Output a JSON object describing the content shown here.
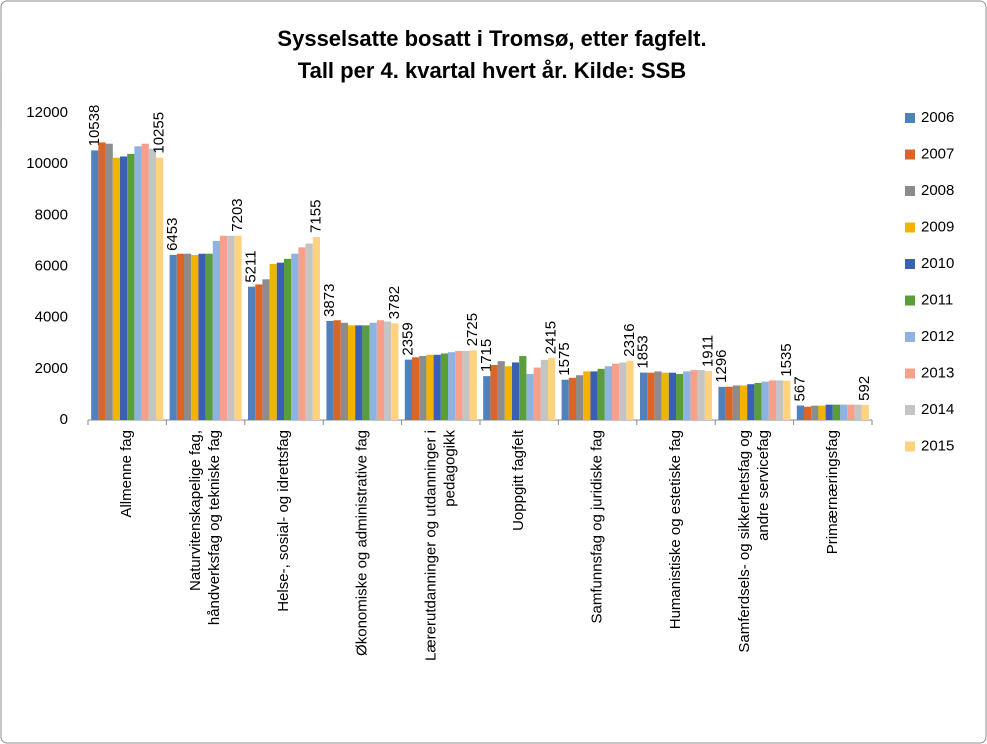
{
  "chart_data": {
    "type": "bar",
    "title": [
      "Sysselsatte bosatt i Tromsø, etter fagfelt.",
      "Tall per 4. kvartal hvert år. Kilde: SSB"
    ],
    "categories": [
      [
        "Allmenne fag"
      ],
      [
        "Naturvitenskapelige fag,",
        "håndverksfag og tekniske fag"
      ],
      [
        "Helse-, sosial- og idrettsfag"
      ],
      [
        "Økonomiske og administrative fag"
      ],
      [
        "Lærerutdanninger og utdanninger i",
        "pedagogikk"
      ],
      [
        "Uoppgitt fagfelt"
      ],
      [
        "Samfunnsfag og juridiske fag"
      ],
      [
        "Humanistiske og estetiske fag"
      ],
      [
        "Samferdsels- og sikkerhetsfag og",
        "andre servicefag"
      ],
      [
        "Primærnæringsfag"
      ]
    ],
    "series": [
      {
        "name": "2006",
        "color": "#4f81bd",
        "data_labels": true,
        "values": [
          10538,
          6453,
          5211,
          3873,
          2359,
          1715,
          1575,
          1853,
          1296,
          567
        ]
      },
      {
        "name": "2007",
        "color": "#d9652b",
        "data_labels": false,
        "values": [
          10850,
          6500,
          5300,
          3900,
          2450,
          2150,
          1650,
          1850,
          1300,
          520
        ]
      },
      {
        "name": "2008",
        "color": "#8c8c8c",
        "data_labels": false,
        "values": [
          10800,
          6500,
          5500,
          3800,
          2500,
          2300,
          1750,
          1900,
          1350,
          560
        ]
      },
      {
        "name": "2009",
        "color": "#f0b400",
        "data_labels": false,
        "values": [
          10250,
          6450,
          6100,
          3700,
          2550,
          2100,
          1900,
          1850,
          1350,
          560
        ]
      },
      {
        "name": "2010",
        "color": "#3a5fb5",
        "data_labels": false,
        "values": [
          10300,
          6500,
          6150,
          3700,
          2550,
          2250,
          1900,
          1850,
          1400,
          600
        ]
      },
      {
        "name": "2011",
        "color": "#5a9e3c",
        "data_labels": false,
        "values": [
          10400,
          6500,
          6300,
          3700,
          2600,
          2500,
          2000,
          1800,
          1450,
          600
        ]
      },
      {
        "name": "2012",
        "color": "#8db3e2",
        "data_labels": false,
        "values": [
          10700,
          7000,
          6500,
          3800,
          2650,
          1800,
          2100,
          1900,
          1500,
          600
        ]
      },
      {
        "name": "2013",
        "color": "#f4a08a",
        "data_labels": false,
        "values": [
          10800,
          7200,
          6750,
          3900,
          2700,
          2050,
          2200,
          1950,
          1550,
          600
        ]
      },
      {
        "name": "2014",
        "color": "#c4c4c4",
        "data_labels": false,
        "values": [
          10600,
          7200,
          6900,
          3850,
          2700,
          2350,
          2250,
          1950,
          1550,
          600
        ]
      },
      {
        "name": "2015",
        "color": "#ffd27f",
        "data_labels": true,
        "values": [
          10255,
          7203,
          7155,
          3782,
          2725,
          2415,
          2316,
          1911,
          1535,
          592
        ]
      }
    ],
    "ylim": [
      0,
      12000
    ],
    "yticks": [
      0,
      2000,
      4000,
      6000,
      8000,
      10000,
      12000
    ],
    "grid": false,
    "legend": "right"
  }
}
